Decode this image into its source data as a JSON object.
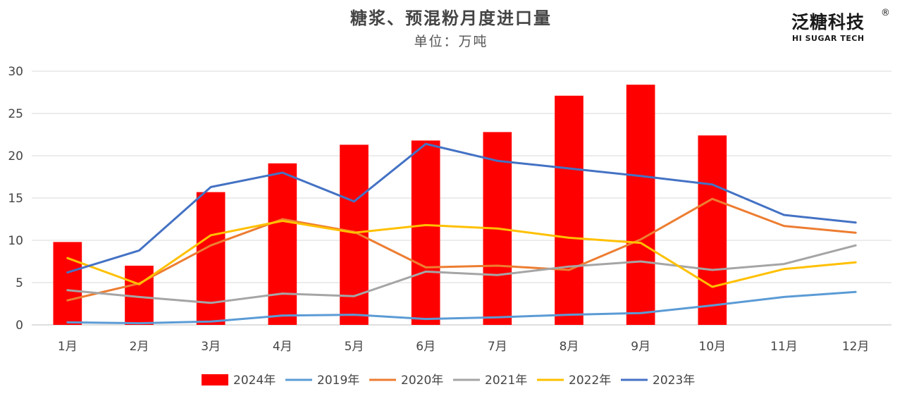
{
  "chart_data": {
    "type": "bar+line",
    "title": "糖浆、预混粉月度进口量",
    "subtitle": "单位：万吨",
    "categories": [
      "1月",
      "2月",
      "3月",
      "4月",
      "5月",
      "6月",
      "7月",
      "8月",
      "9月",
      "10月",
      "11月",
      "12月"
    ],
    "ylim": [
      0,
      30
    ],
    "yticks": [
      0,
      5,
      10,
      15,
      20,
      25,
      30
    ],
    "grid": true,
    "legend_position": "bottom",
    "bar_series": {
      "name": "2024年",
      "color": "#ff0000",
      "values": [
        9.8,
        7.0,
        15.7,
        19.1,
        21.3,
        21.8,
        22.8,
        27.1,
        28.4,
        22.4,
        null,
        null
      ]
    },
    "line_series": [
      {
        "name": "2019年",
        "color": "#5b9bd5",
        "values": [
          0.3,
          0.2,
          0.4,
          1.1,
          1.2,
          0.7,
          0.9,
          1.2,
          1.4,
          2.3,
          3.3,
          3.9
        ]
      },
      {
        "name": "2020年",
        "color": "#ed7d31",
        "values": [
          2.9,
          4.9,
          9.4,
          12.5,
          11.0,
          6.8,
          7.0,
          6.5,
          10.1,
          14.9,
          11.7,
          10.9
        ]
      },
      {
        "name": "2021年",
        "color": "#a5a5a5",
        "values": [
          4.1,
          3.3,
          2.6,
          3.7,
          3.4,
          6.3,
          5.9,
          6.9,
          7.5,
          6.5,
          7.2,
          9.4
        ]
      },
      {
        "name": "2022年",
        "color": "#ffc000",
        "values": [
          7.9,
          4.8,
          10.6,
          12.3,
          10.9,
          11.8,
          11.4,
          10.3,
          9.7,
          4.5,
          6.6,
          7.4
        ]
      },
      {
        "name": "2023年",
        "color": "#4472c4",
        "values": [
          6.2,
          8.8,
          16.3,
          18.0,
          14.6,
          21.4,
          19.4,
          18.5,
          17.6,
          16.6,
          13.0,
          12.1
        ]
      }
    ]
  },
  "logo": {
    "name_cn": "泛糖科技",
    "name_en": "HI SUGAR TECH",
    "registered_mark": "®"
  }
}
